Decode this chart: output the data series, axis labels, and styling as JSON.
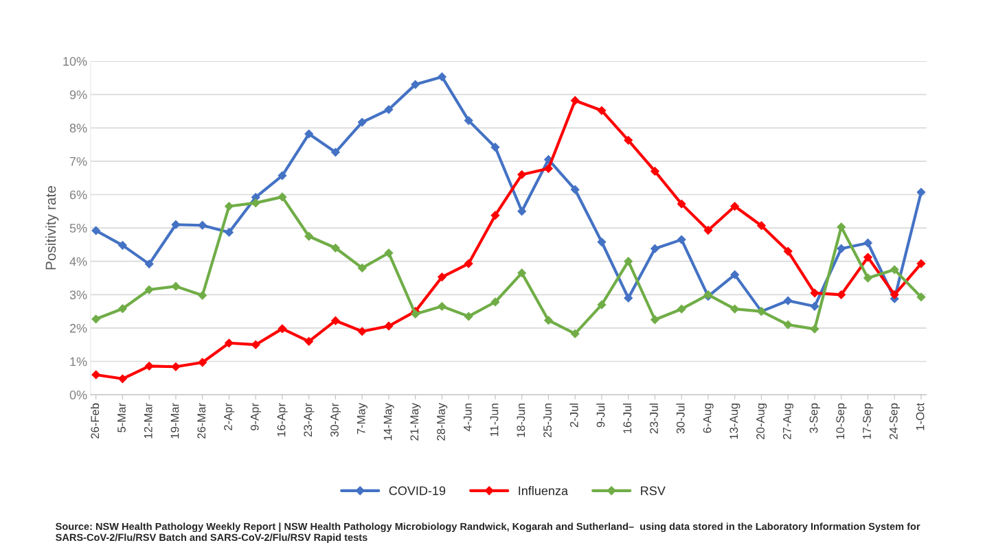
{
  "chart_data": {
    "type": "line",
    "ylabel": "Positivity rate",
    "categories": [
      "26-Feb",
      "5-Mar",
      "12-Mar",
      "19-Mar",
      "26-Mar",
      "2-Apr",
      "9-Apr",
      "16-Apr",
      "23-Apr",
      "30-Apr",
      "7-May",
      "14-May",
      "21-May",
      "28-May",
      "4-Jun",
      "11-Jun",
      "18-Jun",
      "25-Jun",
      "2-Jul",
      "9-Jul",
      "16-Jul",
      "23-Jul",
      "30-Jul",
      "6-Aug",
      "13-Aug",
      "20-Aug",
      "27-Aug",
      "3-Sep",
      "10-Sep",
      "17-Sep",
      "24-Sep",
      "1-Oct"
    ],
    "series": [
      {
        "name": "COVID-19",
        "color": "#4472c4",
        "values": [
          4.92,
          4.48,
          3.92,
          5.1,
          5.08,
          4.87,
          5.92,
          6.57,
          7.82,
          7.27,
          8.17,
          8.55,
          9.3,
          9.53,
          8.22,
          7.42,
          5.5,
          7.05,
          6.15,
          4.58,
          2.9,
          4.38,
          4.65,
          2.95,
          3.6,
          2.5,
          2.82,
          2.65,
          4.38,
          4.55,
          2.88,
          6.07
        ]
      },
      {
        "name": "Influenza",
        "color": "#ff0000",
        "values": [
          0.6,
          0.48,
          0.86,
          0.84,
          0.97,
          1.55,
          1.5,
          1.98,
          1.6,
          2.22,
          1.9,
          2.06,
          2.5,
          3.53,
          3.93,
          5.38,
          6.6,
          6.78,
          8.82,
          8.52,
          7.63,
          6.7,
          5.72,
          4.93,
          5.65,
          5.07,
          4.3,
          3.05,
          3.0,
          4.12,
          3.0,
          3.93
        ]
      },
      {
        "name": "RSV",
        "color": "#70ad47",
        "values": [
          2.27,
          2.58,
          3.15,
          3.25,
          2.98,
          5.65,
          5.75,
          5.93,
          4.75,
          4.4,
          3.8,
          4.25,
          2.42,
          2.65,
          2.35,
          2.78,
          3.65,
          2.23,
          1.83,
          2.7,
          4.0,
          2.25,
          2.57,
          3.0,
          2.57,
          2.5,
          2.1,
          1.97,
          5.03,
          3.5,
          3.75,
          2.93
        ]
      }
    ],
    "ylim": [
      0,
      10
    ],
    "yticks": [
      {
        "value": 0,
        "label": "0%"
      },
      {
        "value": 1,
        "label": "1%"
      },
      {
        "value": 2,
        "label": "2%"
      },
      {
        "value": 3,
        "label": "3%"
      },
      {
        "value": 4,
        "label": "4%"
      },
      {
        "value": 5,
        "label": "5%"
      },
      {
        "value": 6,
        "label": "6%"
      },
      {
        "value": 7,
        "label": "7%"
      },
      {
        "value": 8,
        "label": "8%"
      },
      {
        "value": 9,
        "label": "9%"
      },
      {
        "value": 10,
        "label": "10%"
      }
    ],
    "grid": "y",
    "legend": "bottom",
    "marker": "diamond",
    "line_style": "solid",
    "annotations": [
      "Source: NSW Health Pathology Weekly Report | NSW Health Pathology Microbiology Randwick, Kogarah and Sutherland–  using data stored in the Laboratory Information System for SARS-CoV-2/Flu/RSV Batch and SARS-CoV-2/Flu/RSV Rapid tests"
    ]
  }
}
